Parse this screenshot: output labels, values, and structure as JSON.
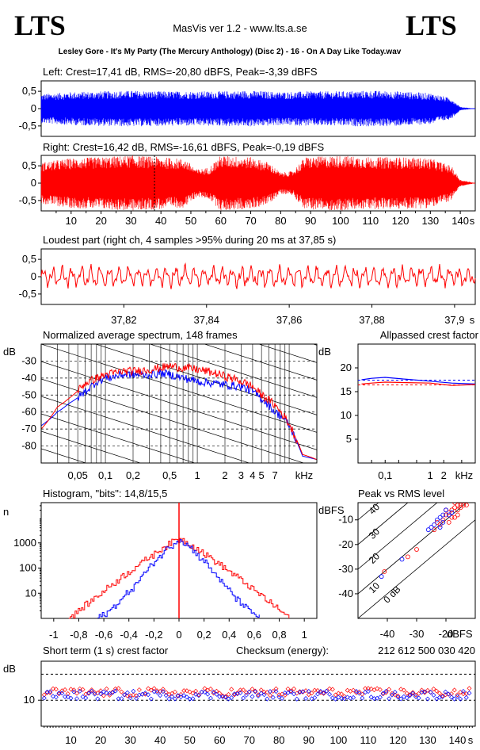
{
  "header": {
    "logo_left": "LTS",
    "logo_right": "LTS",
    "app_title": "MasVis ver 1.2 - www.lts.a.se",
    "file_name": "Lesley Gore - It's My Party (The Mercury Anthology) (Disc 2) - 16 - On A Day Like Today.wav"
  },
  "colors": {
    "left": "#0000ff",
    "right": "#ff0000",
    "axes": "#000000"
  },
  "chart_data": [
    {
      "id": "left",
      "type": "line",
      "title": "Left: Crest=17,41 dB, RMS=-20,80 dBFS, Peak=-3,39 dBFS",
      "yticks": [
        "0,5",
        "0",
        "-0,5"
      ],
      "ylim": [
        -0.8,
        0.8
      ],
      "xlim": [
        0,
        145
      ],
      "envelope": [
        {
          "x": 0,
          "y": 0.42
        },
        {
          "x": 10,
          "y": 0.48
        },
        {
          "x": 20,
          "y": 0.5
        },
        {
          "x": 30,
          "y": 0.52
        },
        {
          "x": 40,
          "y": 0.5
        },
        {
          "x": 50,
          "y": 0.5
        },
        {
          "x": 60,
          "y": 0.5
        },
        {
          "x": 70,
          "y": 0.52
        },
        {
          "x": 80,
          "y": 0.48
        },
        {
          "x": 90,
          "y": 0.5
        },
        {
          "x": 100,
          "y": 0.5
        },
        {
          "x": 110,
          "y": 0.52
        },
        {
          "x": 120,
          "y": 0.5
        },
        {
          "x": 130,
          "y": 0.45
        },
        {
          "x": 137,
          "y": 0.3
        },
        {
          "x": 140,
          "y": 0.05
        },
        {
          "x": 145,
          "y": 0.0
        }
      ]
    },
    {
      "id": "right",
      "type": "line",
      "title": "Right: Crest=16,42 dB, RMS=-16,61 dBFS, Peak=-0,19 dBFS",
      "yticks": [
        "0,5",
        "0",
        "-0,5"
      ],
      "ylim": [
        -0.8,
        0.8
      ],
      "xticks": [
        "10",
        "20",
        "30",
        "40",
        "50",
        "60",
        "70",
        "80",
        "90",
        "100",
        "110",
        "120",
        "130",
        "140"
      ],
      "xunit": "s",
      "marker_x": 37.85,
      "envelope": [
        {
          "x": 0,
          "y": 0.6
        },
        {
          "x": 10,
          "y": 0.72
        },
        {
          "x": 20,
          "y": 0.75
        },
        {
          "x": 30,
          "y": 0.8
        },
        {
          "x": 40,
          "y": 0.75
        },
        {
          "x": 48,
          "y": 0.7
        },
        {
          "x": 52,
          "y": 0.4
        },
        {
          "x": 56,
          "y": 0.45
        },
        {
          "x": 60,
          "y": 0.8
        },
        {
          "x": 70,
          "y": 0.75
        },
        {
          "x": 76,
          "y": 0.6
        },
        {
          "x": 80,
          "y": 0.3
        },
        {
          "x": 84,
          "y": 0.35
        },
        {
          "x": 88,
          "y": 0.75
        },
        {
          "x": 100,
          "y": 0.8
        },
        {
          "x": 110,
          "y": 0.75
        },
        {
          "x": 120,
          "y": 0.75
        },
        {
          "x": 130,
          "y": 0.72
        },
        {
          "x": 137,
          "y": 0.5
        },
        {
          "x": 140,
          "y": 0.1
        },
        {
          "x": 145,
          "y": 0.0
        }
      ]
    },
    {
      "id": "loudest",
      "type": "line",
      "title": "Loudest part (right ch, 4 samples >95% during 20 ms at 37,85 s)",
      "yticks": [
        "0,5",
        "0",
        "-0,5"
      ],
      "ylim": [
        -0.8,
        0.8
      ],
      "xlim": [
        37.8,
        37.905
      ],
      "xticks": [
        "37,82",
        "37,84",
        "37,86",
        "37,88",
        "37,9"
      ],
      "xunit": "s",
      "cycles": 46,
      "amplitude": 0.35
    },
    {
      "id": "spectrum",
      "type": "line",
      "title": "Normalized average spectrum, 148 frames",
      "ylabel": "dB",
      "yticks": [
        "-30",
        "-40",
        "-50",
        "-60",
        "-70",
        "-80"
      ],
      "ylim": [
        -90,
        -20
      ],
      "xticks": [
        "0,05",
        "0,1",
        "0,2",
        "0,5",
        "1",
        "2",
        "3",
        "4",
        "5",
        "7"
      ],
      "xunit": "kHz",
      "xlim_khz": [
        0.02,
        20
      ],
      "series": [
        {
          "series": "right",
          "points": [
            {
              "f": 0.02,
              "db": -70
            },
            {
              "f": 0.03,
              "db": -57
            },
            {
              "f": 0.04,
              "db": -52
            },
            {
              "f": 0.06,
              "db": -43
            },
            {
              "f": 0.08,
              "db": -40
            },
            {
              "f": 0.1,
              "db": -38
            },
            {
              "f": 0.15,
              "db": -36
            },
            {
              "f": 0.2,
              "db": -36
            },
            {
              "f": 0.3,
              "db": -35
            },
            {
              "f": 0.4,
              "db": -34
            },
            {
              "f": 0.5,
              "db": -33
            },
            {
              "f": 0.7,
              "db": -34
            },
            {
              "f": 1,
              "db": -35
            },
            {
              "f": 1.5,
              "db": -37
            },
            {
              "f": 2,
              "db": -39
            },
            {
              "f": 3,
              "db": -42
            },
            {
              "f": 4,
              "db": -45
            },
            {
              "f": 5,
              "db": -50
            },
            {
              "f": 7,
              "db": -56
            },
            {
              "f": 10,
              "db": -67
            },
            {
              "f": 14,
              "db": -85
            },
            {
              "f": 20,
              "db": -88
            }
          ]
        },
        {
          "series": "left",
          "points": [
            {
              "f": 0.02,
              "db": -68
            },
            {
              "f": 0.03,
              "db": -60
            },
            {
              "f": 0.04,
              "db": -55
            },
            {
              "f": 0.06,
              "db": -48
            },
            {
              "f": 0.08,
              "db": -42
            },
            {
              "f": 0.1,
              "db": -40
            },
            {
              "f": 0.15,
              "db": -38
            },
            {
              "f": 0.2,
              "db": -38
            },
            {
              "f": 0.3,
              "db": -38
            },
            {
              "f": 0.4,
              "db": -37
            },
            {
              "f": 0.5,
              "db": -38
            },
            {
              "f": 0.7,
              "db": -40
            },
            {
              "f": 1,
              "db": -42
            },
            {
              "f": 1.5,
              "db": -43
            },
            {
              "f": 2,
              "db": -44
            },
            {
              "f": 3,
              "db": -45
            },
            {
              "f": 4,
              "db": -48
            },
            {
              "f": 5,
              "db": -52
            },
            {
              "f": 7,
              "db": -60
            },
            {
              "f": 8,
              "db": -62
            },
            {
              "f": 10,
              "db": -68
            },
            {
              "f": 14,
              "db": -86
            },
            {
              "f": 20,
              "db": -88
            }
          ]
        }
      ]
    },
    {
      "id": "allpass",
      "type": "line",
      "title": "Allpassed crest factor",
      "ylabel": "dB",
      "yticks": [
        "20",
        "15",
        "10",
        "5"
      ],
      "ylim": [
        0,
        25
      ],
      "xticks": [
        "0,1",
        "1",
        "2"
      ],
      "xunit": "kHz",
      "series": [
        {
          "series": "left",
          "points": [
            {
              "f": 0.03,
              "db": 17.5
            },
            {
              "f": 0.05,
              "db": 17.8
            },
            {
              "f": 0.1,
              "db": 18
            },
            {
              "f": 0.3,
              "db": 17.6
            },
            {
              "f": 1,
              "db": 17.2
            },
            {
              "f": 3,
              "db": 16.8
            },
            {
              "f": 10,
              "db": 16.6
            }
          ]
        },
        {
          "series": "right",
          "points": [
            {
              "f": 0.03,
              "db": 16.6
            },
            {
              "f": 0.05,
              "db": 16.8
            },
            {
              "f": 0.1,
              "db": 17
            },
            {
              "f": 0.3,
              "db": 16.9
            },
            {
              "f": 1,
              "db": 16.8
            },
            {
              "f": 3,
              "db": 16.3
            },
            {
              "f": 10,
              "db": 16.5
            }
          ]
        }
      ],
      "reference_levels": [
        {
          "series": "left",
          "db": 17.41
        },
        {
          "series": "right",
          "db": 16.42
        }
      ]
    },
    {
      "id": "histogram",
      "type": "line",
      "title": "Histogram, \"bits\": 14,8/15,5",
      "ylabel": "n",
      "yticks": [
        "1000",
        "100",
        "10"
      ],
      "yscale": "log",
      "xticks": [
        "-1",
        "-0,8",
        "-0,6",
        "-0,4",
        "-0,2",
        "0",
        "0,2",
        "0,4",
        "0,6",
        "0,8",
        "1"
      ],
      "series": [
        {
          "series": "right",
          "points": [
            {
              "x": -0.88,
              "n": 1
            },
            {
              "x": -0.8,
              "n": 2
            },
            {
              "x": -0.7,
              "n": 5
            },
            {
              "x": -0.6,
              "n": 12
            },
            {
              "x": -0.5,
              "n": 30
            },
            {
              "x": -0.4,
              "n": 70
            },
            {
              "x": -0.3,
              "n": 160
            },
            {
              "x": -0.2,
              "n": 360
            },
            {
              "x": -0.1,
              "n": 800
            },
            {
              "x": 0,
              "n": 1500
            },
            {
              "x": 0.1,
              "n": 800
            },
            {
              "x": 0.2,
              "n": 360
            },
            {
              "x": 0.3,
              "n": 160
            },
            {
              "x": 0.4,
              "n": 70
            },
            {
              "x": 0.5,
              "n": 30
            },
            {
              "x": 0.6,
              "n": 12
            },
            {
              "x": 0.7,
              "n": 5
            },
            {
              "x": 0.8,
              "n": 2
            },
            {
              "x": 0.88,
              "n": 1
            }
          ]
        },
        {
          "series": "left",
          "points": [
            {
              "x": -0.65,
              "n": 1
            },
            {
              "x": -0.55,
              "n": 2
            },
            {
              "x": -0.45,
              "n": 6
            },
            {
              "x": -0.35,
              "n": 20
            },
            {
              "x": -0.25,
              "n": 80
            },
            {
              "x": -0.15,
              "n": 300
            },
            {
              "x": -0.05,
              "n": 900
            },
            {
              "x": 0,
              "n": 1500
            },
            {
              "x": 0.05,
              "n": 900
            },
            {
              "x": 0.15,
              "n": 300
            },
            {
              "x": 0.25,
              "n": 80
            },
            {
              "x": 0.35,
              "n": 20
            },
            {
              "x": 0.45,
              "n": 6
            },
            {
              "x": 0.55,
              "n": 2
            },
            {
              "x": 0.65,
              "n": 1
            }
          ]
        }
      ]
    },
    {
      "id": "peak_vs_rms",
      "type": "scatter",
      "title": "Peak vs RMS level",
      "ylabel": "dBFS",
      "xlabel": "dBFS",
      "yticks": [
        "-10",
        "-20",
        "-30",
        "-40"
      ],
      "xticks": [
        "-40",
        "-30",
        "-20"
      ],
      "xlim": [
        -50,
        -10
      ],
      "ylim": [
        -50,
        -3
      ],
      "diagonal_labels": [
        "40",
        "30",
        "20",
        "10",
        "0 dB"
      ],
      "series": [
        {
          "series": "right",
          "points": [
            {
              "x": -16,
              "y": -4
            },
            {
              "x": -17,
              "y": -5
            },
            {
              "x": -15,
              "y": -4
            },
            {
              "x": -18,
              "y": -6
            },
            {
              "x": -16,
              "y": -6
            },
            {
              "x": -17,
              "y": -3
            },
            {
              "x": -19,
              "y": -7
            },
            {
              "x": -20,
              "y": -8
            },
            {
              "x": -18,
              "y": -9
            },
            {
              "x": -21,
              "y": -10
            },
            {
              "x": -22,
              "y": -12
            },
            {
              "x": -23,
              "y": -11
            },
            {
              "x": -15,
              "y": -5
            },
            {
              "x": -14,
              "y": -4
            },
            {
              "x": -16,
              "y": -8
            },
            {
              "x": -20,
              "y": -6
            },
            {
              "x": -24,
              "y": -14
            },
            {
              "x": -30,
              "y": -22
            },
            {
              "x": -33,
              "y": -25
            },
            {
              "x": -41,
              "y": -31
            },
            {
              "x": -13,
              "y": -4
            },
            {
              "x": -17,
              "y": -9
            },
            {
              "x": -19,
              "y": -11
            }
          ]
        },
        {
          "series": "left",
          "points": [
            {
              "x": -20,
              "y": -6
            },
            {
              "x": -21,
              "y": -8
            },
            {
              "x": -22,
              "y": -9
            },
            {
              "x": -19,
              "y": -8
            },
            {
              "x": -23,
              "y": -10
            },
            {
              "x": -24,
              "y": -12
            },
            {
              "x": -21,
              "y": -11
            },
            {
              "x": -25,
              "y": -13
            },
            {
              "x": -26,
              "y": -14
            },
            {
              "x": -18,
              "y": -7
            },
            {
              "x": -42,
              "y": -33
            },
            {
              "x": -35,
              "y": -26
            },
            {
              "x": -22,
              "y": -13
            }
          ]
        }
      ]
    },
    {
      "id": "short_term_crest",
      "type": "scatter",
      "title": "Short term (1 s) crest factor",
      "checksum_label": "Checksum (energy):",
      "checksum_value": "212 612 500 030 420",
      "ylabel": "dB",
      "yticks": [
        "10"
      ],
      "ylim": [
        0,
        25
      ],
      "xlim": [
        0,
        146
      ],
      "xticks": [
        "10",
        "20",
        "30",
        "40",
        "50",
        "60",
        "70",
        "80",
        "90",
        "100",
        "110",
        "120",
        "130",
        "140"
      ],
      "xunit": "s",
      "series": [
        {
          "series": "right",
          "mean_db": 13,
          "spread_db": 1.6
        },
        {
          "series": "left",
          "mean_db": 12,
          "spread_db": 1.6
        }
      ]
    }
  ]
}
